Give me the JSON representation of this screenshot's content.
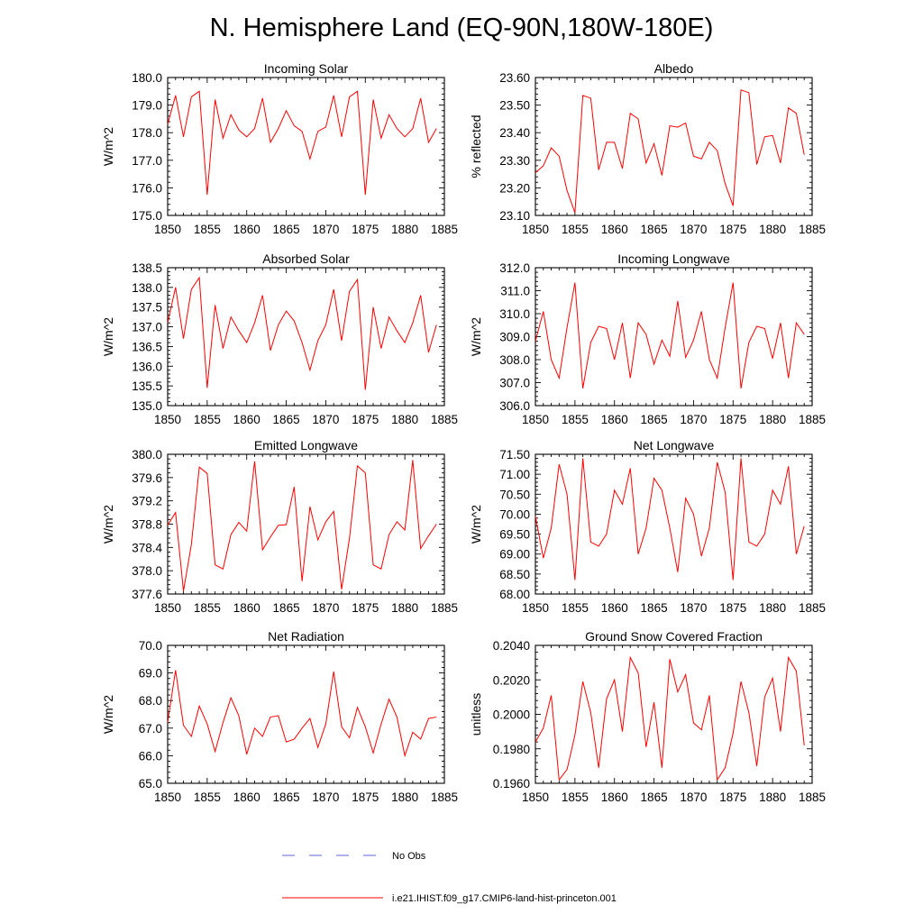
{
  "title": "N. Hemisphere Land (EQ-90N,180W-180E)",
  "legend": [
    {
      "label": "No Obs",
      "color": "#5b63d8",
      "style": "dashed"
    },
    {
      "label": "i.e21.IHIST.f09_g17.CMIP6-land-hist-princeton.001",
      "color": "#ff0000",
      "style": "solid"
    }
  ],
  "chart_data": [
    {
      "type": "line",
      "title": "Incoming Solar",
      "ylabel": "W/m^2",
      "xlim": [
        1850,
        1885
      ],
      "xticks": [
        1850,
        1855,
        1860,
        1865,
        1870,
        1875,
        1880,
        1885
      ],
      "ylim": [
        175.0,
        180.0
      ],
      "yticks": [
        "175.0",
        "176.0",
        "177.0",
        "178.0",
        "179.0",
        "180.0"
      ],
      "x": [
        1850,
        1851,
        1852,
        1853,
        1854,
        1855,
        1856,
        1857,
        1858,
        1859,
        1860,
        1861,
        1862,
        1863,
        1864,
        1865,
        1866,
        1867,
        1868,
        1869,
        1870,
        1871,
        1872,
        1873,
        1874,
        1875,
        1876,
        1877,
        1878,
        1879,
        1880,
        1881,
        1882,
        1883,
        1884
      ],
      "series": [
        {
          "color": "#ff0000",
          "values": [
            178.3,
            179.35,
            177.85,
            179.3,
            179.5,
            175.75,
            179.2,
            177.8,
            178.65,
            178.1,
            177.85,
            178.15,
            179.25,
            177.65,
            178.15,
            178.8,
            178.25,
            178.05,
            177.05,
            178.05,
            178.2,
            179.35,
            177.85,
            179.3,
            179.5,
            175.75,
            179.2,
            177.8,
            178.65,
            178.15,
            177.85,
            178.15,
            179.25,
            177.65,
            178.15
          ]
        }
      ]
    },
    {
      "type": "line",
      "title": "Albedo",
      "ylabel": "% reflected",
      "xlim": [
        1850,
        1885
      ],
      "xticks": [
        1850,
        1855,
        1860,
        1865,
        1870,
        1875,
        1880,
        1885
      ],
      "ylim": [
        23.1,
        23.6
      ],
      "yticks": [
        "23.10",
        "23.20",
        "23.30",
        "23.40",
        "23.50",
        "23.60"
      ],
      "x": [
        1850,
        1851,
        1852,
        1853,
        1854,
        1855,
        1856,
        1857,
        1858,
        1859,
        1860,
        1861,
        1862,
        1863,
        1864,
        1865,
        1866,
        1867,
        1868,
        1869,
        1870,
        1871,
        1872,
        1873,
        1874,
        1875,
        1876,
        1877,
        1878,
        1879,
        1880,
        1881,
        1882,
        1883,
        1884
      ],
      "series": [
        {
          "color": "#ff0000",
          "values": [
            23.255,
            23.28,
            23.345,
            23.315,
            23.19,
            23.11,
            23.535,
            23.525,
            23.265,
            23.365,
            23.365,
            23.27,
            23.47,
            23.45,
            23.29,
            23.36,
            23.245,
            23.425,
            23.42,
            23.435,
            23.315,
            23.305,
            23.365,
            23.335,
            23.215,
            23.135,
            23.555,
            23.545,
            23.285,
            23.385,
            23.39,
            23.29,
            23.49,
            23.47,
            23.32
          ]
        }
      ]
    },
    {
      "type": "line",
      "title": "Absorbed Solar",
      "ylabel": "W/m^2",
      "xlim": [
        1850,
        1885
      ],
      "xticks": [
        1850,
        1855,
        1860,
        1865,
        1870,
        1875,
        1880,
        1885
      ],
      "ylim": [
        135.0,
        138.5
      ],
      "yticks": [
        "135.0",
        "135.5",
        "136.0",
        "136.5",
        "137.0",
        "137.5",
        "138.0",
        "138.5"
      ],
      "x": [
        1850,
        1851,
        1852,
        1853,
        1854,
        1855,
        1856,
        1857,
        1858,
        1859,
        1860,
        1861,
        1862,
        1863,
        1864,
        1865,
        1866,
        1867,
        1868,
        1869,
        1870,
        1871,
        1872,
        1873,
        1874,
        1875,
        1876,
        1877,
        1878,
        1879,
        1880,
        1881,
        1882,
        1883,
        1884
      ],
      "series": [
        {
          "color": "#ff0000",
          "values": [
            137.1,
            138.0,
            136.7,
            137.95,
            138.25,
            135.45,
            137.55,
            136.45,
            137.25,
            136.9,
            136.6,
            137.1,
            137.8,
            136.4,
            137.05,
            137.4,
            137.15,
            136.6,
            135.9,
            136.65,
            137.05,
            137.95,
            136.65,
            137.9,
            138.2,
            135.4,
            137.5,
            136.45,
            137.25,
            136.9,
            136.6,
            137.1,
            137.8,
            136.35,
            137.05
          ]
        }
      ]
    },
    {
      "type": "line",
      "title": "Incoming Longwave",
      "ylabel": "W/m^2",
      "xlim": [
        1850,
        1885
      ],
      "xticks": [
        1850,
        1855,
        1860,
        1865,
        1870,
        1875,
        1880,
        1885
      ],
      "ylim": [
        306.0,
        312.0
      ],
      "yticks": [
        "306.0",
        "307.0",
        "308.0",
        "309.0",
        "310.0",
        "311.0",
        "312.0"
      ],
      "x": [
        1850,
        1851,
        1852,
        1853,
        1854,
        1855,
        1856,
        1857,
        1858,
        1859,
        1860,
        1861,
        1862,
        1863,
        1864,
        1865,
        1866,
        1867,
        1868,
        1869,
        1870,
        1871,
        1872,
        1873,
        1874,
        1875,
        1876,
        1877,
        1878,
        1879,
        1880,
        1881,
        1882,
        1883,
        1884
      ],
      "series": [
        {
          "color": "#ff0000",
          "values": [
            308.8,
            310.1,
            308.0,
            307.2,
            309.4,
            311.35,
            306.75,
            308.75,
            309.45,
            309.35,
            308.0,
            309.6,
            307.2,
            309.6,
            309.1,
            307.8,
            308.85,
            308.15,
            310.55,
            308.1,
            308.85,
            310.1,
            308.0,
            307.2,
            309.4,
            311.35,
            306.75,
            308.75,
            309.45,
            309.35,
            308.05,
            309.6,
            307.2,
            309.6,
            309.1
          ]
        }
      ]
    },
    {
      "type": "line",
      "title": "Emitted Longwave",
      "ylabel": "W/m^2",
      "xlim": [
        1850,
        1885
      ],
      "xticks": [
        1850,
        1855,
        1860,
        1865,
        1870,
        1875,
        1880,
        1885
      ],
      "ylim": [
        377.6,
        380.0
      ],
      "yticks": [
        "377.6",
        "378.0",
        "378.4",
        "378.8",
        "379.2",
        "379.6",
        "380.0"
      ],
      "x": [
        1850,
        1851,
        1852,
        1853,
        1854,
        1855,
        1856,
        1857,
        1858,
        1859,
        1860,
        1861,
        1862,
        1863,
        1864,
        1865,
        1866,
        1867,
        1868,
        1869,
        1870,
        1871,
        1872,
        1873,
        1874,
        1875,
        1876,
        1877,
        1878,
        1879,
        1880,
        1881,
        1882,
        1883,
        1884
      ],
      "series": [
        {
          "color": "#ff0000",
          "values": [
            378.78,
            379.0,
            377.65,
            378.45,
            379.78,
            379.67,
            378.1,
            378.03,
            378.62,
            378.83,
            378.68,
            379.88,
            378.36,
            378.58,
            378.78,
            378.79,
            379.44,
            377.82,
            379.1,
            378.53,
            378.84,
            379.02,
            377.68,
            378.56,
            379.8,
            379.68,
            378.1,
            378.03,
            378.62,
            378.84,
            378.7,
            379.9,
            378.38,
            378.6,
            378.8
          ]
        }
      ]
    },
    {
      "type": "line",
      "title": "Net Longwave",
      "ylabel": "W/m^2",
      "xlim": [
        1850,
        1885
      ],
      "xticks": [
        1850,
        1855,
        1860,
        1865,
        1870,
        1875,
        1880,
        1885
      ],
      "ylim": [
        68.0,
        71.5
      ],
      "yticks": [
        "68.00",
        "68.50",
        "69.00",
        "69.50",
        "70.00",
        "70.50",
        "71.00",
        "71.50"
      ],
      "x": [
        1850,
        1851,
        1852,
        1853,
        1854,
        1855,
        1856,
        1857,
        1858,
        1859,
        1860,
        1861,
        1862,
        1863,
        1864,
        1865,
        1866,
        1867,
        1868,
        1869,
        1870,
        1871,
        1872,
        1873,
        1874,
        1875,
        1876,
        1877,
        1878,
        1879,
        1880,
        1881,
        1882,
        1883,
        1884
      ],
      "series": [
        {
          "color": "#ff0000",
          "values": [
            69.95,
            68.9,
            69.65,
            71.25,
            70.5,
            68.35,
            71.4,
            69.3,
            69.2,
            69.5,
            70.6,
            70.25,
            71.15,
            69.0,
            69.65,
            70.9,
            70.6,
            69.65,
            68.55,
            70.4,
            70.0,
            68.95,
            69.65,
            71.3,
            70.55,
            68.35,
            71.4,
            69.3,
            69.2,
            69.5,
            70.6,
            70.25,
            71.2,
            69.0,
            69.7
          ]
        }
      ]
    },
    {
      "type": "line",
      "title": "Net Radiation",
      "ylabel": "W/m^2",
      "xlim": [
        1850,
        1885
      ],
      "xticks": [
        1850,
        1855,
        1860,
        1865,
        1870,
        1875,
        1880,
        1885
      ],
      "ylim": [
        65.0,
        70.0
      ],
      "yticks": [
        "65.0",
        "66.0",
        "67.0",
        "68.0",
        "69.0",
        "70.0"
      ],
      "x": [
        1850,
        1851,
        1852,
        1853,
        1854,
        1855,
        1856,
        1857,
        1858,
        1859,
        1860,
        1861,
        1862,
        1863,
        1864,
        1865,
        1866,
        1867,
        1868,
        1869,
        1870,
        1871,
        1872,
        1873,
        1874,
        1875,
        1876,
        1877,
        1878,
        1879,
        1880,
        1881,
        1882,
        1883,
        1884
      ],
      "series": [
        {
          "color": "#ff0000",
          "values": [
            67.2,
            69.1,
            67.1,
            66.7,
            67.8,
            67.15,
            66.15,
            67.2,
            68.1,
            67.45,
            66.05,
            67.0,
            66.7,
            67.4,
            67.45,
            66.5,
            66.6,
            67.0,
            67.35,
            66.3,
            67.15,
            69.05,
            67.05,
            66.65,
            67.75,
            67.05,
            66.1,
            67.15,
            68.05,
            67.4,
            66.0,
            66.85,
            66.6,
            67.35,
            67.4
          ]
        }
      ]
    },
    {
      "type": "line",
      "title": "Ground Snow Covered Fraction",
      "ylabel": "unitless",
      "xlim": [
        1850,
        1885
      ],
      "xticks": [
        1850,
        1855,
        1860,
        1865,
        1870,
        1875,
        1880,
        1885
      ],
      "ylim": [
        0.196,
        0.204
      ],
      "yticks": [
        "0.1960",
        "0.1980",
        "0.2000",
        "0.2020",
        "0.2040"
      ],
      "x": [
        1850,
        1851,
        1852,
        1853,
        1854,
        1855,
        1856,
        1857,
        1858,
        1859,
        1860,
        1861,
        1862,
        1863,
        1864,
        1865,
        1866,
        1867,
        1868,
        1869,
        1870,
        1871,
        1872,
        1873,
        1874,
        1875,
        1876,
        1877,
        1878,
        1879,
        1880,
        1881,
        1882,
        1883,
        1884
      ],
      "series": [
        {
          "color": "#ff0000",
          "values": [
            0.1984,
            0.1992,
            0.2011,
            0.1962,
            0.1968,
            0.1988,
            0.2019,
            0.2001,
            0.1969,
            0.2009,
            0.202,
            0.199,
            0.2033,
            0.2024,
            0.1981,
            0.2007,
            0.1969,
            0.2032,
            0.2013,
            0.2023,
            0.1995,
            0.1991,
            0.2011,
            0.1962,
            0.1969,
            0.1989,
            0.2019,
            0.2001,
            0.197,
            0.201,
            0.2021,
            0.199,
            0.2033,
            0.2025,
            0.1982
          ]
        }
      ]
    }
  ]
}
